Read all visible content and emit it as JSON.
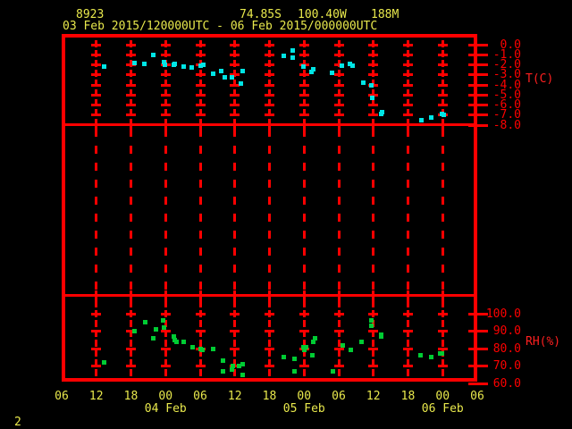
{
  "header": {
    "station_id": "8923",
    "position": {
      "lat": "74.85S",
      "lon": "100.40W",
      "elevation": "188M"
    },
    "time_range": "03 Feb 2015/120000UTC - 06 Feb 2015/000000UTC"
  },
  "page_number": "2",
  "colors": {
    "background": "#000000",
    "axis": "#ff0000",
    "header_text": "#e8e84c",
    "temperature": "#00e5e5",
    "humidity": "#00cc33"
  },
  "chart_data": {
    "type": "scatter",
    "title": "",
    "x_axis": {
      "unit": "hours since 03 Feb 2015 00:00 UTC",
      "range": [
        6,
        78
      ],
      "tick_interval_hours": 6,
      "tick_labels": [
        "06",
        "12",
        "18",
        "00",
        "06",
        "12",
        "18",
        "00",
        "06",
        "12",
        "18",
        "00",
        "06"
      ],
      "date_labels": [
        {
          "text": "04 Feb",
          "tick_index": 3
        },
        {
          "text": "05 Feb",
          "tick_index": 7
        },
        {
          "text": "06 Feb",
          "tick_index": 11
        }
      ]
    },
    "panels": [
      {
        "name": "temperature",
        "axis_label": "T(C)",
        "ylim": [
          -8,
          0.8
        ],
        "tick_labels": [
          "0.0",
          "-1.0",
          "-2.0",
          "-3.0",
          "-4.0",
          "-5.0",
          "-6.0",
          "-7.0",
          "-8.0"
        ]
      },
      {
        "name": "empty-middle-panel",
        "axis_label": "",
        "tick_labels": []
      },
      {
        "name": "relative_humidity",
        "axis_label": "RH(%)",
        "ylim": [
          60,
          110
        ],
        "tick_labels": [
          "100.0",
          "90.0",
          "80.0",
          "70.0",
          "60.0"
        ]
      }
    ],
    "series": [
      {
        "name": "temperature",
        "panel": "temperature",
        "marker": "square",
        "color": "#00e5e5",
        "points": [
          [
            13.3,
            -2.2
          ],
          [
            18.6,
            -1.8
          ],
          [
            20.3,
            -1.9
          ],
          [
            21.9,
            -1.0
          ],
          [
            23.7,
            -1.7
          ],
          [
            23.9,
            -2.0
          ],
          [
            25.4,
            -2.0
          ],
          [
            25.6,
            -1.9
          ],
          [
            27.1,
            -2.2
          ],
          [
            28.6,
            -2.3
          ],
          [
            30.0,
            -2.1
          ],
          [
            30.6,
            -2.0
          ],
          [
            32.2,
            -2.9
          ],
          [
            33.7,
            -2.6
          ],
          [
            34.2,
            -3.2
          ],
          [
            35.5,
            -3.2
          ],
          [
            37.1,
            -3.9
          ],
          [
            37.4,
            -2.6
          ],
          [
            44.4,
            -1.1
          ],
          [
            46.1,
            -0.6
          ],
          [
            46.1,
            -1.3
          ],
          [
            47.9,
            -2.2
          ],
          [
            49.2,
            -2.7
          ],
          [
            49.6,
            -2.4
          ],
          [
            52.9,
            -2.8
          ],
          [
            54.5,
            -2.1
          ],
          [
            56.0,
            -1.9
          ],
          [
            56.4,
            -2.1
          ],
          [
            58.2,
            -3.8
          ],
          [
            59.6,
            -4.0
          ],
          [
            59.8,
            -5.3
          ],
          [
            61.3,
            -6.9
          ],
          [
            61.5,
            -6.7
          ],
          [
            68.3,
            -7.5
          ],
          [
            70.1,
            -7.2
          ],
          [
            71.9,
            -6.9
          ],
          [
            72.2,
            -7.0
          ]
        ]
      },
      {
        "name": "relative_humidity",
        "panel": "relative_humidity",
        "marker": "square",
        "color": "#00cc33",
        "points": [
          [
            13.3,
            72
          ],
          [
            18.6,
            90
          ],
          [
            20.4,
            95
          ],
          [
            21.9,
            86
          ],
          [
            22.3,
            91
          ],
          [
            23.5,
            96
          ],
          [
            23.8,
            92
          ],
          [
            25.4,
            87
          ],
          [
            25.6,
            85
          ],
          [
            25.9,
            84
          ],
          [
            27.1,
            84
          ],
          [
            28.7,
            81
          ],
          [
            30.1,
            80
          ],
          [
            30.4,
            79
          ],
          [
            32.3,
            80
          ],
          [
            34.0,
            73
          ],
          [
            34.0,
            67
          ],
          [
            35.5,
            68
          ],
          [
            35.7,
            70
          ],
          [
            36.7,
            70
          ],
          [
            37.3,
            71
          ],
          [
            37.4,
            65
          ],
          [
            44.4,
            75
          ],
          [
            46.3,
            74
          ],
          [
            46.3,
            67
          ],
          [
            47.9,
            81
          ],
          [
            48.1,
            79
          ],
          [
            48.4,
            81
          ],
          [
            49.4,
            76
          ],
          [
            49.6,
            84
          ],
          [
            49.9,
            86
          ],
          [
            53.0,
            67
          ],
          [
            54.7,
            82
          ],
          [
            56.1,
            79
          ],
          [
            58.0,
            84
          ],
          [
            59.6,
            96
          ],
          [
            59.7,
            93
          ],
          [
            61.3,
            88
          ],
          [
            61.4,
            87
          ],
          [
            68.2,
            76
          ],
          [
            70.1,
            75
          ],
          [
            71.6,
            77
          ],
          [
            71.9,
            77
          ]
        ]
      }
    ]
  }
}
